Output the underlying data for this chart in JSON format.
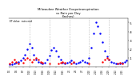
{
  "title": "Milwaukee Weather Evapotranspiration vs Rain per Day",
  "title2": "(Inches)",
  "legend_label": "ET=blue  rain=red",
  "background_color": "#ffffff",
  "blue_color": "#0000ff",
  "red_color": "#ff0000",
  "black_color": "#000000",
  "ylim": [
    0,
    0.55
  ],
  "ytick_positions": [
    0.1,
    0.2,
    0.3,
    0.4,
    0.5
  ],
  "ytick_labels": [
    ".1",
    ".2",
    ".3",
    ".4",
    ".5"
  ],
  "et_data": [
    [
      0,
      0.03
    ],
    [
      1,
      0.03
    ],
    [
      2,
      0.04
    ],
    [
      3,
      0.05
    ],
    [
      4,
      0.06
    ],
    [
      5,
      0.07
    ],
    [
      6,
      0.1
    ],
    [
      7,
      0.14
    ],
    [
      8,
      0.2
    ],
    [
      9,
      0.26
    ],
    [
      10,
      0.22
    ],
    [
      11,
      0.14
    ],
    [
      12,
      0.08
    ],
    [
      13,
      0.06
    ],
    [
      14,
      0.05
    ],
    [
      15,
      0.04
    ],
    [
      16,
      0.05
    ],
    [
      17,
      0.08
    ],
    [
      18,
      0.13
    ],
    [
      19,
      0.19
    ],
    [
      20,
      0.22
    ],
    [
      21,
      0.18
    ],
    [
      22,
      0.12
    ],
    [
      23,
      0.08
    ],
    [
      24,
      0.05
    ],
    [
      25,
      0.04
    ],
    [
      26,
      0.05
    ],
    [
      27,
      0.06
    ],
    [
      28,
      0.07
    ],
    [
      29,
      0.05
    ],
    [
      30,
      0.04
    ],
    [
      31,
      0.05
    ],
    [
      32,
      0.06
    ],
    [
      33,
      0.07
    ],
    [
      34,
      0.06
    ],
    [
      35,
      0.05
    ],
    [
      36,
      0.1
    ],
    [
      37,
      0.22
    ],
    [
      38,
      0.38
    ],
    [
      39,
      0.5
    ],
    [
      40,
      0.46
    ],
    [
      41,
      0.38
    ],
    [
      42,
      0.28
    ],
    [
      43,
      0.18
    ],
    [
      44,
      0.12
    ],
    [
      45,
      0.08
    ],
    [
      46,
      0.06
    ],
    [
      47,
      0.05
    ],
    [
      48,
      0.04
    ],
    [
      49,
      0.04
    ],
    [
      50,
      0.04
    ],
    [
      51,
      0.05
    ],
    [
      52,
      0.06
    ],
    [
      53,
      0.07
    ]
  ],
  "rain_data": [
    [
      0,
      0.04
    ],
    [
      1,
      0.06
    ],
    [
      2,
      0.08
    ],
    [
      3,
      0.06
    ],
    [
      4,
      0.04
    ],
    [
      6,
      0.05
    ],
    [
      7,
      0.08
    ],
    [
      8,
      0.1
    ],
    [
      9,
      0.08
    ],
    [
      10,
      0.06
    ],
    [
      11,
      0.08
    ],
    [
      12,
      0.1
    ],
    [
      13,
      0.08
    ],
    [
      14,
      0.06
    ],
    [
      15,
      0.05
    ],
    [
      18,
      0.04
    ],
    [
      22,
      0.04
    ],
    [
      23,
      0.05
    ],
    [
      24,
      0.06
    ],
    [
      25,
      0.05
    ],
    [
      28,
      0.04
    ],
    [
      29,
      0.06
    ],
    [
      36,
      0.04
    ],
    [
      42,
      0.06
    ],
    [
      43,
      0.08
    ],
    [
      44,
      0.1
    ],
    [
      45,
      0.08
    ],
    [
      49,
      0.04
    ],
    [
      50,
      0.05
    ],
    [
      51,
      0.04
    ]
  ],
  "vlines_x": [
    9,
    18,
    27,
    36,
    45
  ],
  "xtick_positions": [
    0,
    3,
    6,
    9,
    12,
    15,
    18,
    21,
    24,
    27,
    30,
    33,
    36,
    39,
    42,
    45,
    48,
    51
  ],
  "xtick_labels": [
    "1/1",
    "1/4",
    "1/7",
    "1/10",
    "1/13",
    "1/16",
    "1/19",
    "1/22",
    "1/25",
    "2/1",
    "2/4",
    "2/7",
    "2/10",
    "2/13",
    "2/16",
    "2/19",
    "2/22",
    "2/25"
  ]
}
